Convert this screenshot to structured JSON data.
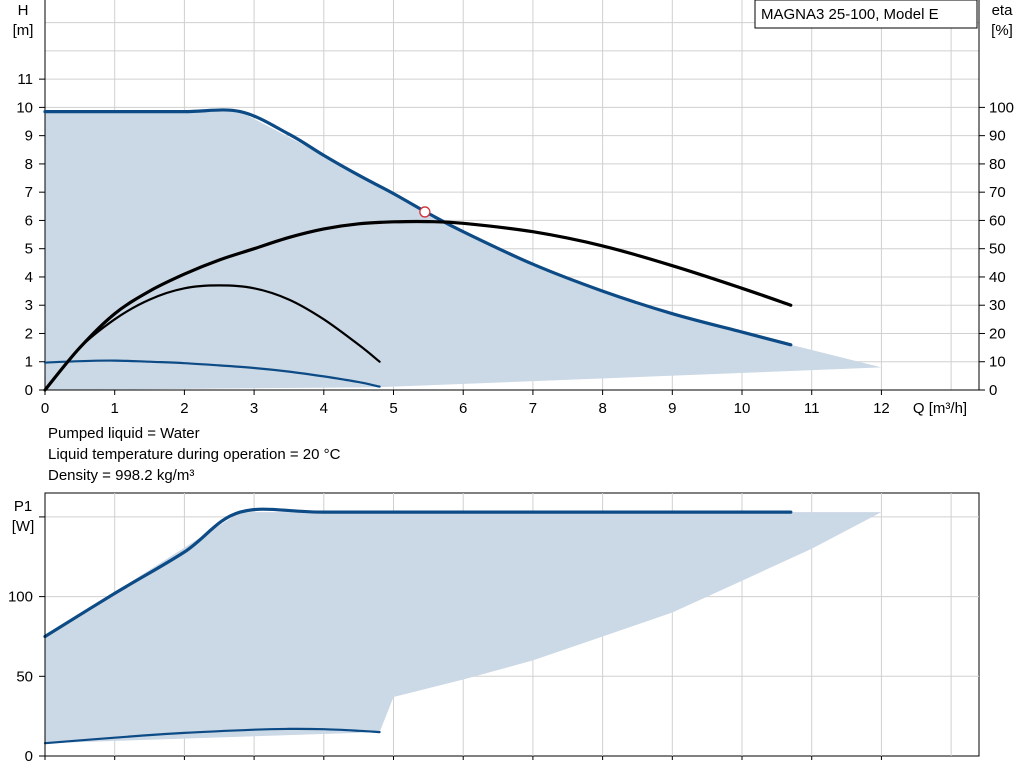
{
  "head_chart": {
    "model_label": "MAGNA3 25-100, Model E",
    "y_label": [
      "H",
      "[m]"
    ],
    "y2_label": [
      "eta",
      "[%]"
    ],
    "x_label": "Q [m³/h]"
  },
  "info_lines": [
    "Pumped liquid = Water",
    "Liquid temperature during operation = 20 °C",
    "Density = 998.2 kg/m³"
  ],
  "power_chart": {
    "y_label": [
      "P1",
      "[W]"
    ]
  },
  "colors": {
    "curve": "#0d4b86",
    "area": "#cbd8e5",
    "grid": "#d0d0d0",
    "eta": "#000000",
    "duty_point": "#d0303a"
  },
  "chart_data": [
    {
      "type": "line",
      "title": "MAGNA3 25-100, Model E",
      "xlabel": "Q [m³/h]",
      "ylabel": "H [m]",
      "y2label": "eta [%]",
      "xlim": [
        0,
        13.4
      ],
      "ylim": [
        0,
        13.8
      ],
      "y2lim": [
        0,
        138
      ],
      "x_ticks": [
        0,
        1,
        2,
        3,
        4,
        5,
        6,
        7,
        8,
        9,
        10,
        11,
        12
      ],
      "y_ticks": [
        0,
        1,
        2,
        3,
        4,
        5,
        6,
        7,
        8,
        9,
        10,
        11
      ],
      "y2_ticks": [
        0,
        10,
        20,
        30,
        40,
        50,
        60,
        70,
        80,
        90,
        100
      ],
      "grid": true,
      "operating_area": [
        [
          0,
          9.85
        ],
        [
          2.8,
          9.85
        ],
        [
          4.0,
          8.3
        ],
        [
          5.0,
          6.95
        ],
        [
          6.0,
          5.6
        ],
        [
          7.0,
          4.45
        ],
        [
          8.0,
          3.5
        ],
        [
          9.0,
          2.7
        ],
        [
          10.0,
          2.05
        ],
        [
          10.7,
          1.6
        ],
        [
          12.0,
          0.8
        ],
        [
          4.8,
          0.1
        ],
        [
          0,
          0
        ]
      ],
      "series": [
        {
          "name": "",
          "axis": "H",
          "x": [
            0,
            1,
            2,
            2.8,
            3.5,
            4.0,
            4.5,
            5.0,
            5.5,
            6.0,
            7.0,
            8.0,
            9.0,
            10.0,
            10.7
          ],
          "y": [
            9.85,
            9.85,
            9.85,
            9.85,
            9.05,
            8.3,
            7.6,
            6.95,
            6.25,
            5.6,
            4.45,
            3.5,
            2.7,
            2.05,
            1.6
          ]
        },
        {
          "name": "",
          "axis": "H",
          "x": [
            0,
            0.5,
            1,
            1.5,
            2,
            2.5,
            3,
            3.5,
            4,
            4.5,
            4.8
          ],
          "y": [
            0.97,
            1.02,
            1.04,
            1.0,
            0.95,
            0.87,
            0.78,
            0.65,
            0.48,
            0.28,
            0.12
          ]
        },
        {
          "name": "",
          "axis": "eta",
          "x": [
            0,
            0.5,
            1,
            1.5,
            2,
            2.5,
            3,
            3.5,
            4,
            4.5,
            5,
            5.5,
            6,
            7,
            8,
            9,
            10,
            10.7
          ],
          "y": [
            0,
            15,
            27,
            35,
            41,
            46,
            50,
            54,
            57,
            58.8,
            59.5,
            59.6,
            59,
            56,
            51,
            44,
            36,
            30
          ]
        },
        {
          "name": "",
          "axis": "eta",
          "x": [
            0,
            0.5,
            1,
            1.5,
            2,
            2.5,
            3,
            3.5,
            4,
            4.5,
            4.8
          ],
          "y": [
            0,
            15,
            25,
            32,
            36,
            37,
            36,
            32,
            25,
            16,
            10
          ]
        }
      ],
      "duty_point": {
        "x": 5.45,
        "y": 6.3
      }
    },
    {
      "type": "line",
      "ylabel": "P1 [W]",
      "xlim": [
        0,
        13.4
      ],
      "ylim": [
        0,
        165
      ],
      "y_ticks": [
        0,
        50,
        100,
        150
      ],
      "y_tick_labels": [
        "0",
        "50",
        "100",
        ""
      ],
      "grid": true,
      "operating_area": [
        [
          0,
          75
        ],
        [
          2.8,
          153
        ],
        [
          12.0,
          153
        ],
        [
          11.0,
          130
        ],
        [
          10.0,
          110
        ],
        [
          9.5,
          100
        ],
        [
          9.0,
          90
        ],
        [
          8.0,
          75
        ],
        [
          7.0,
          60
        ],
        [
          6.0,
          48
        ],
        [
          5.0,
          37
        ],
        [
          4.8,
          15
        ],
        [
          0,
          8
        ]
      ],
      "series": [
        {
          "name": "",
          "x": [
            0,
            1,
            2,
            2.8,
            4,
            6,
            8,
            10,
            10.7
          ],
          "y": [
            75,
            102,
            128,
            153,
            153,
            153,
            153,
            153,
            153
          ]
        },
        {
          "name": "",
          "x": [
            0,
            1,
            2,
            3,
            3.5,
            4,
            4.5,
            4.8
          ],
          "y": [
            8,
            11.5,
            14.5,
            16.5,
            17,
            16.8,
            15.8,
            15
          ]
        }
      ]
    }
  ]
}
